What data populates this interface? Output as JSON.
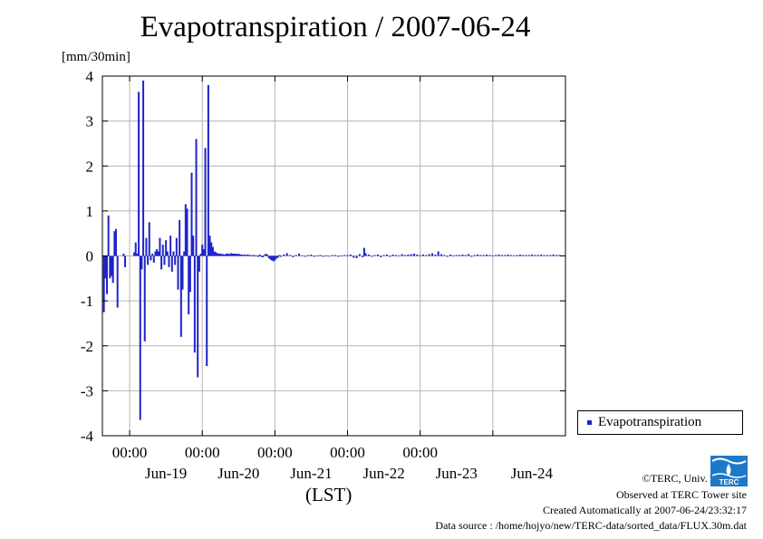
{
  "page": {
    "title": "Evapotranspiration / 2007-06-24",
    "unit_label": "[mm/30min]",
    "x_unit": "(LST)",
    "legend": {
      "label": "Evapotranspiration",
      "color": "#1f24c8"
    },
    "credits": [
      "©TERC, Univ. Tsukuba",
      "Observed at TERC Tower site",
      "Created Automatically at 2007-06-24/23:32:17",
      "Data source : /home/hojyo/new/TERC-data/sorted_data/FLUX.30m.dat"
    ],
    "logo": {
      "text": "TERC",
      "icon": "terc-logo-icon"
    }
  },
  "chart_data": {
    "type": "bar",
    "series": [
      {
        "name": "Evapotranspiration",
        "color": "#1f24c8",
        "points": [
          [
            "2007-06-18T15:30",
            -1.25
          ],
          [
            "2007-06-18T16:00",
            -0.5
          ],
          [
            "2007-06-18T16:30",
            -0.85
          ],
          [
            "2007-06-18T17:00",
            0.9
          ],
          [
            "2007-06-18T17:30",
            -0.5
          ],
          [
            "2007-06-18T18:00",
            -0.45
          ],
          [
            "2007-06-18T18:30",
            -0.6
          ],
          [
            "2007-06-18T19:00",
            0.55
          ],
          [
            "2007-06-18T19:30",
            0.6
          ],
          [
            "2007-06-18T20:00",
            -1.15
          ],
          [
            "2007-06-18T22:00",
            0.05
          ],
          [
            "2007-06-18T22:30",
            -0.25
          ],
          [
            "2007-06-19T01:30",
            0.08
          ],
          [
            "2007-06-19T02:00",
            0.3
          ],
          [
            "2007-06-19T02:30",
            0.05
          ],
          [
            "2007-06-19T03:00",
            3.65
          ],
          [
            "2007-06-19T03:30",
            -3.65
          ],
          [
            "2007-06-19T04:00",
            -0.3
          ],
          [
            "2007-06-19T04:30",
            3.9
          ],
          [
            "2007-06-19T05:00",
            -1.9
          ],
          [
            "2007-06-19T05:30",
            0.4
          ],
          [
            "2007-06-19T06:00",
            -0.2
          ],
          [
            "2007-06-19T06:30",
            0.75
          ],
          [
            "2007-06-19T07:00",
            -0.1
          ],
          [
            "2007-06-19T07:30",
            0.05
          ],
          [
            "2007-06-19T08:00",
            -0.15
          ],
          [
            "2007-06-19T08:30",
            0.1
          ],
          [
            "2007-06-19T09:00",
            0.15
          ],
          [
            "2007-06-19T09:30",
            0.1
          ],
          [
            "2007-06-19T10:00",
            0.4
          ],
          [
            "2007-06-19T10:30",
            -0.3
          ],
          [
            "2007-06-19T11:00",
            0.25
          ],
          [
            "2007-06-19T11:30",
            -0.2
          ],
          [
            "2007-06-19T12:00",
            0.35
          ],
          [
            "2007-06-19T12:30",
            0.1
          ],
          [
            "2007-06-19T13:00",
            -0.25
          ],
          [
            "2007-06-19T13:30",
            0.45
          ],
          [
            "2007-06-19T14:00",
            -0.35
          ],
          [
            "2007-06-19T14:30",
            0.1
          ],
          [
            "2007-06-19T15:00",
            -0.2
          ],
          [
            "2007-06-19T15:30",
            0.4
          ],
          [
            "2007-06-19T16:00",
            -0.75
          ],
          [
            "2007-06-19T16:30",
            0.8
          ],
          [
            "2007-06-19T17:00",
            -1.8
          ],
          [
            "2007-06-19T17:30",
            -0.75
          ],
          [
            "2007-06-19T18:00",
            0.1
          ],
          [
            "2007-06-19T18:30",
            1.15
          ],
          [
            "2007-06-19T19:00",
            1.05
          ],
          [
            "2007-06-19T19:30",
            -1.3
          ],
          [
            "2007-06-19T20:00",
            -0.8
          ],
          [
            "2007-06-19T20:30",
            1.85
          ],
          [
            "2007-06-19T21:00",
            0.45
          ],
          [
            "2007-06-19T21:30",
            -2.15
          ],
          [
            "2007-06-19T22:00",
            2.6
          ],
          [
            "2007-06-19T22:30",
            -2.7
          ],
          [
            "2007-06-19T23:00",
            -0.35
          ],
          [
            "2007-06-19T23:30",
            0.05
          ],
          [
            "2007-06-20T00:00",
            0.25
          ],
          [
            "2007-06-20T00:30",
            0.15
          ],
          [
            "2007-06-20T01:00",
            2.4
          ],
          [
            "2007-06-20T01:30",
            -2.45
          ],
          [
            "2007-06-20T02:00",
            3.8
          ],
          [
            "2007-06-20T02:30",
            0.45
          ],
          [
            "2007-06-20T03:00",
            0.3
          ],
          [
            "2007-06-20T03:30",
            0.2
          ],
          [
            "2007-06-20T04:00",
            0.1
          ],
          [
            "2007-06-20T04:30",
            0.08
          ],
          [
            "2007-06-20T05:00",
            0.06
          ],
          [
            "2007-06-20T05:30",
            0.05
          ],
          [
            "2007-06-20T06:00",
            0.05
          ],
          [
            "2007-06-20T06:30",
            0.04
          ],
          [
            "2007-06-20T07:00",
            0.04
          ],
          [
            "2007-06-20T07:30",
            0.03
          ],
          [
            "2007-06-20T08:00",
            0.05
          ],
          [
            "2007-06-20T08:30",
            0.05
          ],
          [
            "2007-06-20T09:00",
            0.04
          ],
          [
            "2007-06-20T09:30",
            0.06
          ],
          [
            "2007-06-20T10:00",
            0.05
          ],
          [
            "2007-06-20T10:30",
            0.05
          ],
          [
            "2007-06-20T11:00",
            0.05
          ],
          [
            "2007-06-20T11:30",
            0.04
          ],
          [
            "2007-06-20T12:00",
            0.05
          ],
          [
            "2007-06-20T12:30",
            0.03
          ],
          [
            "2007-06-20T13:00",
            0.03
          ],
          [
            "2007-06-20T13:30",
            0.02
          ],
          [
            "2007-06-20T14:00",
            0.03
          ],
          [
            "2007-06-20T14:30",
            0.02
          ],
          [
            "2007-06-20T15:00",
            0.03
          ],
          [
            "2007-06-20T15:30",
            0.02
          ],
          [
            "2007-06-20T16:00",
            0.02
          ],
          [
            "2007-06-20T16:30",
            0.01
          ],
          [
            "2007-06-20T17:00",
            0.02
          ],
          [
            "2007-06-20T17:30",
            0.01
          ],
          [
            "2007-06-20T18:00",
            0.01
          ],
          [
            "2007-06-20T18:30",
            -0.02
          ],
          [
            "2007-06-20T19:00",
            0.03
          ],
          [
            "2007-06-20T19:30",
            -0.02
          ],
          [
            "2007-06-20T20:00",
            -0.03
          ],
          [
            "2007-06-20T20:30",
            0.02
          ],
          [
            "2007-06-20T21:00",
            0.05
          ],
          [
            "2007-06-20T21:30",
            0.03
          ],
          [
            "2007-06-20T22:00",
            -0.05
          ],
          [
            "2007-06-20T22:30",
            -0.08
          ],
          [
            "2007-06-20T23:00",
            -0.1
          ],
          [
            "2007-06-20T23:30",
            -0.12
          ],
          [
            "2007-06-21T00:00",
            -0.1
          ],
          [
            "2007-06-21T00:30",
            -0.06
          ],
          [
            "2007-06-21T01:00",
            -0.04
          ],
          [
            "2007-06-21T01:30",
            0.02
          ],
          [
            "2007-06-21T02:00",
            -0.02
          ],
          [
            "2007-06-21T03:00",
            0.03
          ],
          [
            "2007-06-21T04:00",
            0.06
          ],
          [
            "2007-06-21T05:00",
            0.02
          ],
          [
            "2007-06-21T06:00",
            -0.03
          ],
          [
            "2007-06-21T07:00",
            0.02
          ],
          [
            "2007-06-21T08:00",
            0.05
          ],
          [
            "2007-06-21T09:00",
            0.01
          ],
          [
            "2007-06-21T10:00",
            -0.02
          ],
          [
            "2007-06-21T11:00",
            0.02
          ],
          [
            "2007-06-21T12:00",
            0.03
          ],
          [
            "2007-06-21T13:00",
            -0.02
          ],
          [
            "2007-06-21T14:00",
            0.01
          ],
          [
            "2007-06-21T15:00",
            0.02
          ],
          [
            "2007-06-21T16:00",
            -0.02
          ],
          [
            "2007-06-21T17:00",
            0.01
          ],
          [
            "2007-06-21T18:00",
            -0.01
          ],
          [
            "2007-06-21T19:00",
            0.02
          ],
          [
            "2007-06-21T20:00",
            0.02
          ],
          [
            "2007-06-21T21:00",
            -0.02
          ],
          [
            "2007-06-21T22:00",
            0.01
          ],
          [
            "2007-06-21T23:00",
            0.02
          ],
          [
            "2007-06-22T00:00",
            0.02
          ],
          [
            "2007-06-22T01:00",
            0.03
          ],
          [
            "2007-06-22T02:00",
            -0.04
          ],
          [
            "2007-06-22T03:00",
            -0.05
          ],
          [
            "2007-06-22T04:00",
            0.04
          ],
          [
            "2007-06-22T05:00",
            -0.03
          ],
          [
            "2007-06-22T05:30",
            0.18
          ],
          [
            "2007-06-22T06:00",
            0.06
          ],
          [
            "2007-06-22T07:00",
            0.03
          ],
          [
            "2007-06-22T08:00",
            -0.02
          ],
          [
            "2007-06-22T09:00",
            0.02
          ],
          [
            "2007-06-22T10:00",
            0.03
          ],
          [
            "2007-06-22T11:00",
            -0.03
          ],
          [
            "2007-06-22T12:00",
            0.02
          ],
          [
            "2007-06-22T13:00",
            0.03
          ],
          [
            "2007-06-22T14:00",
            -0.02
          ],
          [
            "2007-06-22T15:00",
            0.03
          ],
          [
            "2007-06-22T16:00",
            0.02
          ],
          [
            "2007-06-22T17:00",
            0.01
          ],
          [
            "2007-06-22T18:00",
            0.04
          ],
          [
            "2007-06-22T19:00",
            0.02
          ],
          [
            "2007-06-22T20:00",
            0.03
          ],
          [
            "2007-06-22T21:00",
            0.04
          ],
          [
            "2007-06-22T22:00",
            0.05
          ],
          [
            "2007-06-22T23:00",
            0.03
          ],
          [
            "2007-06-23T00:00",
            0.02
          ],
          [
            "2007-06-23T01:00",
            0.03
          ],
          [
            "2007-06-23T02:00",
            0.02
          ],
          [
            "2007-06-23T03:00",
            0.04
          ],
          [
            "2007-06-23T04:00",
            0.06
          ],
          [
            "2007-06-23T05:00",
            0.03
          ],
          [
            "2007-06-23T06:00",
            0.1
          ],
          [
            "2007-06-23T07:00",
            0.04
          ],
          [
            "2007-06-23T08:00",
            0.02
          ],
          [
            "2007-06-23T09:00",
            -0.02
          ],
          [
            "2007-06-23T10:00",
            0.03
          ],
          [
            "2007-06-23T11:00",
            0.01
          ],
          [
            "2007-06-23T12:00",
            0.02
          ],
          [
            "2007-06-23T13:00",
            0.02
          ],
          [
            "2007-06-23T14:00",
            0.03
          ],
          [
            "2007-06-23T15:00",
            0.02
          ],
          [
            "2007-06-23T16:00",
            0.04
          ],
          [
            "2007-06-23T17:00",
            -0.02
          ],
          [
            "2007-06-23T18:00",
            0.02
          ],
          [
            "2007-06-23T19:00",
            0.03
          ],
          [
            "2007-06-23T20:00",
            0.02
          ],
          [
            "2007-06-23T21:00",
            0.02
          ],
          [
            "2007-06-23T22:00",
            0.03
          ],
          [
            "2007-06-23T23:00",
            0.02
          ],
          [
            "2007-06-24T00:00",
            0.01
          ],
          [
            "2007-06-24T01:00",
            0.02
          ],
          [
            "2007-06-24T02:00",
            0.03
          ],
          [
            "2007-06-24T03:00",
            0.02
          ],
          [
            "2007-06-24T04:00",
            0.02
          ],
          [
            "2007-06-24T05:00",
            0.03
          ],
          [
            "2007-06-24T06:00",
            0.02
          ],
          [
            "2007-06-24T07:00",
            0.01
          ],
          [
            "2007-06-24T08:00",
            0.02
          ],
          [
            "2007-06-24T09:00",
            0.03
          ],
          [
            "2007-06-24T10:00",
            0.02
          ],
          [
            "2007-06-24T11:00",
            0.02
          ],
          [
            "2007-06-24T12:00",
            0.02
          ],
          [
            "2007-06-24T13:00",
            0.03
          ],
          [
            "2007-06-24T14:00",
            0.02
          ],
          [
            "2007-06-24T15:00",
            0.02
          ],
          [
            "2007-06-24T16:00",
            0.03
          ],
          [
            "2007-06-24T17:00",
            0.02
          ],
          [
            "2007-06-24T18:00",
            0.02
          ],
          [
            "2007-06-24T19:00",
            0.02
          ],
          [
            "2007-06-24T20:00",
            0.03
          ],
          [
            "2007-06-24T21:00",
            0.02
          ],
          [
            "2007-06-24T22:00",
            0.02
          ],
          [
            "2007-06-24T23:00",
            0.01
          ]
        ]
      }
    ],
    "x_range": [
      "2007-06-18T15:00",
      "2007-06-25T00:00"
    ],
    "x_ticks": [
      {
        "time": "2007-06-19T00:00",
        "label": "00:00",
        "day": "Jun-19"
      },
      {
        "time": "2007-06-20T00:00",
        "label": "00:00",
        "day": "Jun-20"
      },
      {
        "time": "2007-06-21T00:00",
        "label": "00:00",
        "day": "Jun-21"
      },
      {
        "time": "2007-06-22T00:00",
        "label": "00:00",
        "day": "Jun-22"
      },
      {
        "time": "2007-06-23T00:00",
        "label": "00:00",
        "day": "Jun-23"
      },
      {
        "time": "2007-06-24T00:00",
        "label": "",
        "day": "Jun-24"
      }
    ],
    "ylim": [
      -4,
      4
    ],
    "y_ticks": [
      -4,
      -3,
      -2,
      -1,
      0,
      1,
      2,
      3,
      4
    ],
    "grid": true,
    "legend_position": "right"
  }
}
